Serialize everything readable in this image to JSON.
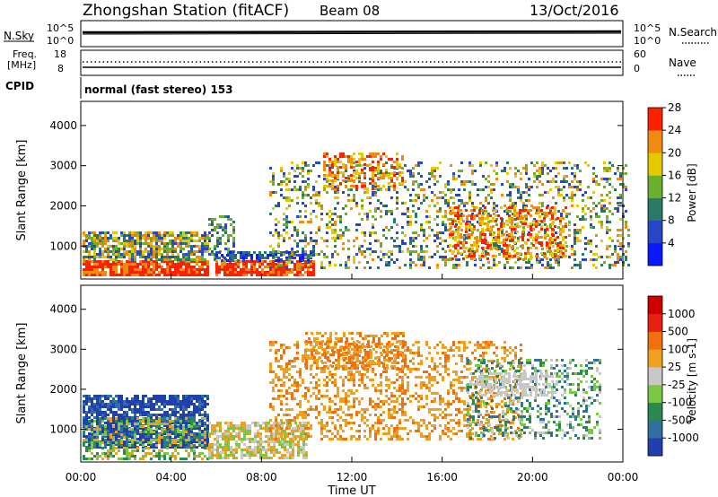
{
  "header": {
    "title": "Zhongshan Station (fitACF)",
    "beam": "Beam 08",
    "date": "13/Oct/2016",
    "mode": "normal (fast stereo) 153"
  },
  "status_panels": {
    "nsky": {
      "label": "N.Sky",
      "tick_top": "10^5",
      "tick_bottom": "10^0",
      "right_label": "N.Search",
      "right_tick_top": "10^5",
      "right_tick_bottom": "10^0"
    },
    "freq": {
      "label_line1": "Freq.",
      "label_line2": "[MHz]",
      "tick_top": "18",
      "tick_bottom": "8",
      "right_label": "Nave",
      "right_tick_top": "60",
      "right_tick_bottom": "0"
    },
    "cpid_label": "CPID"
  },
  "chart_data": [
    {
      "type": "heatmap",
      "title": "Power",
      "ylabel": "Slant Range [km]",
      "xlabel": "",
      "yticks": [
        "1000",
        "2000",
        "3000",
        "4000"
      ],
      "ylim": [
        180,
        4600
      ],
      "colorbar": {
        "label": "Power [dB]",
        "ticks": [
          "4",
          "8",
          "12",
          "16",
          "20",
          "24",
          "28"
        ],
        "colors": [
          "#0a1aff",
          "#2a46c8",
          "#2a7a68",
          "#6ab02e",
          "#e6c800",
          "#f08a10",
          "#ff2000"
        ]
      }
    },
    {
      "type": "heatmap",
      "title": "Velocity",
      "ylabel": "Slant Range [km]",
      "xlabel": "Time UT",
      "xticks": [
        "00:00",
        "04:00",
        "08:00",
        "12:00",
        "16:00",
        "20:00",
        "00:00"
      ],
      "yticks": [
        "1000",
        "2000",
        "3000",
        "4000"
      ],
      "ylim": [
        180,
        4600
      ],
      "colorbar": {
        "label": "Velocity [m s-1]",
        "ticks": [
          "1000",
          "500",
          "100",
          "25",
          "-25",
          "-100",
          "-500",
          "-1000"
        ],
        "colors": [
          "#2040b0",
          "#3070a0",
          "#2a8a50",
          "#78c840",
          "#c8c8c8",
          "#f0a020",
          "#f07010",
          "#e82010",
          "#d00000"
        ]
      }
    }
  ]
}
